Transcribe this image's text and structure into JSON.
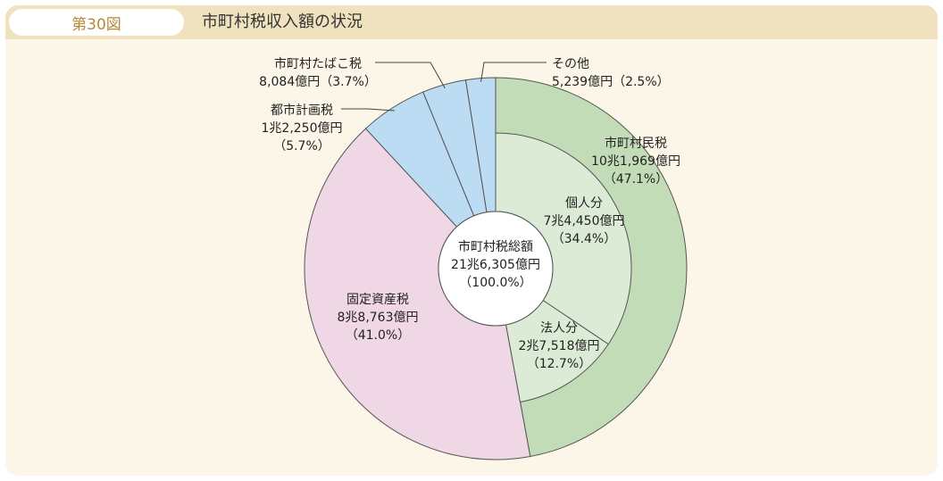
{
  "header": {
    "figure_number": "第30図",
    "title": "市町村税収入額の状況"
  },
  "chart_data": {
    "type": "pie",
    "center_label": [
      "市町村税総額",
      "21兆6,305億円",
      "（100.0%）"
    ],
    "total": 216305,
    "outer": [
      {
        "name": "市町村民税",
        "amount": "10兆1,969億円",
        "pct_text": "（47.1%）",
        "value": 47.1,
        "color": "#c3dcb8"
      },
      {
        "name": "固定資産税",
        "amount": "8兆8,763億円",
        "pct_text": "（41.0%）",
        "value": 41.0,
        "color": "#f0d7e5"
      },
      {
        "name": "都市計画税",
        "amount": "1兆2,250億円",
        "pct_text": "（5.7%）",
        "value": 5.7,
        "color": "#bcdcf4"
      },
      {
        "name": "市町村たばこ税",
        "amount": "8,084億円",
        "pct_text": "（3.7%）",
        "value": 3.7,
        "color": "#bcdcf4"
      },
      {
        "name": "その他",
        "amount": "5,239億円",
        "pct_text": "（2.5%）",
        "value": 2.5,
        "color": "#bcdcf4"
      }
    ],
    "inner": [
      {
        "name": "個人分",
        "amount": "7兆4,450億円",
        "pct_text": "（34.4%）",
        "value": 34.4,
        "color": "#dcebd6"
      },
      {
        "name": "法人分",
        "amount": "2兆7,518億円",
        "pct_text": "（12.7%）",
        "value": 12.7,
        "color": "#dcebd6"
      }
    ]
  }
}
